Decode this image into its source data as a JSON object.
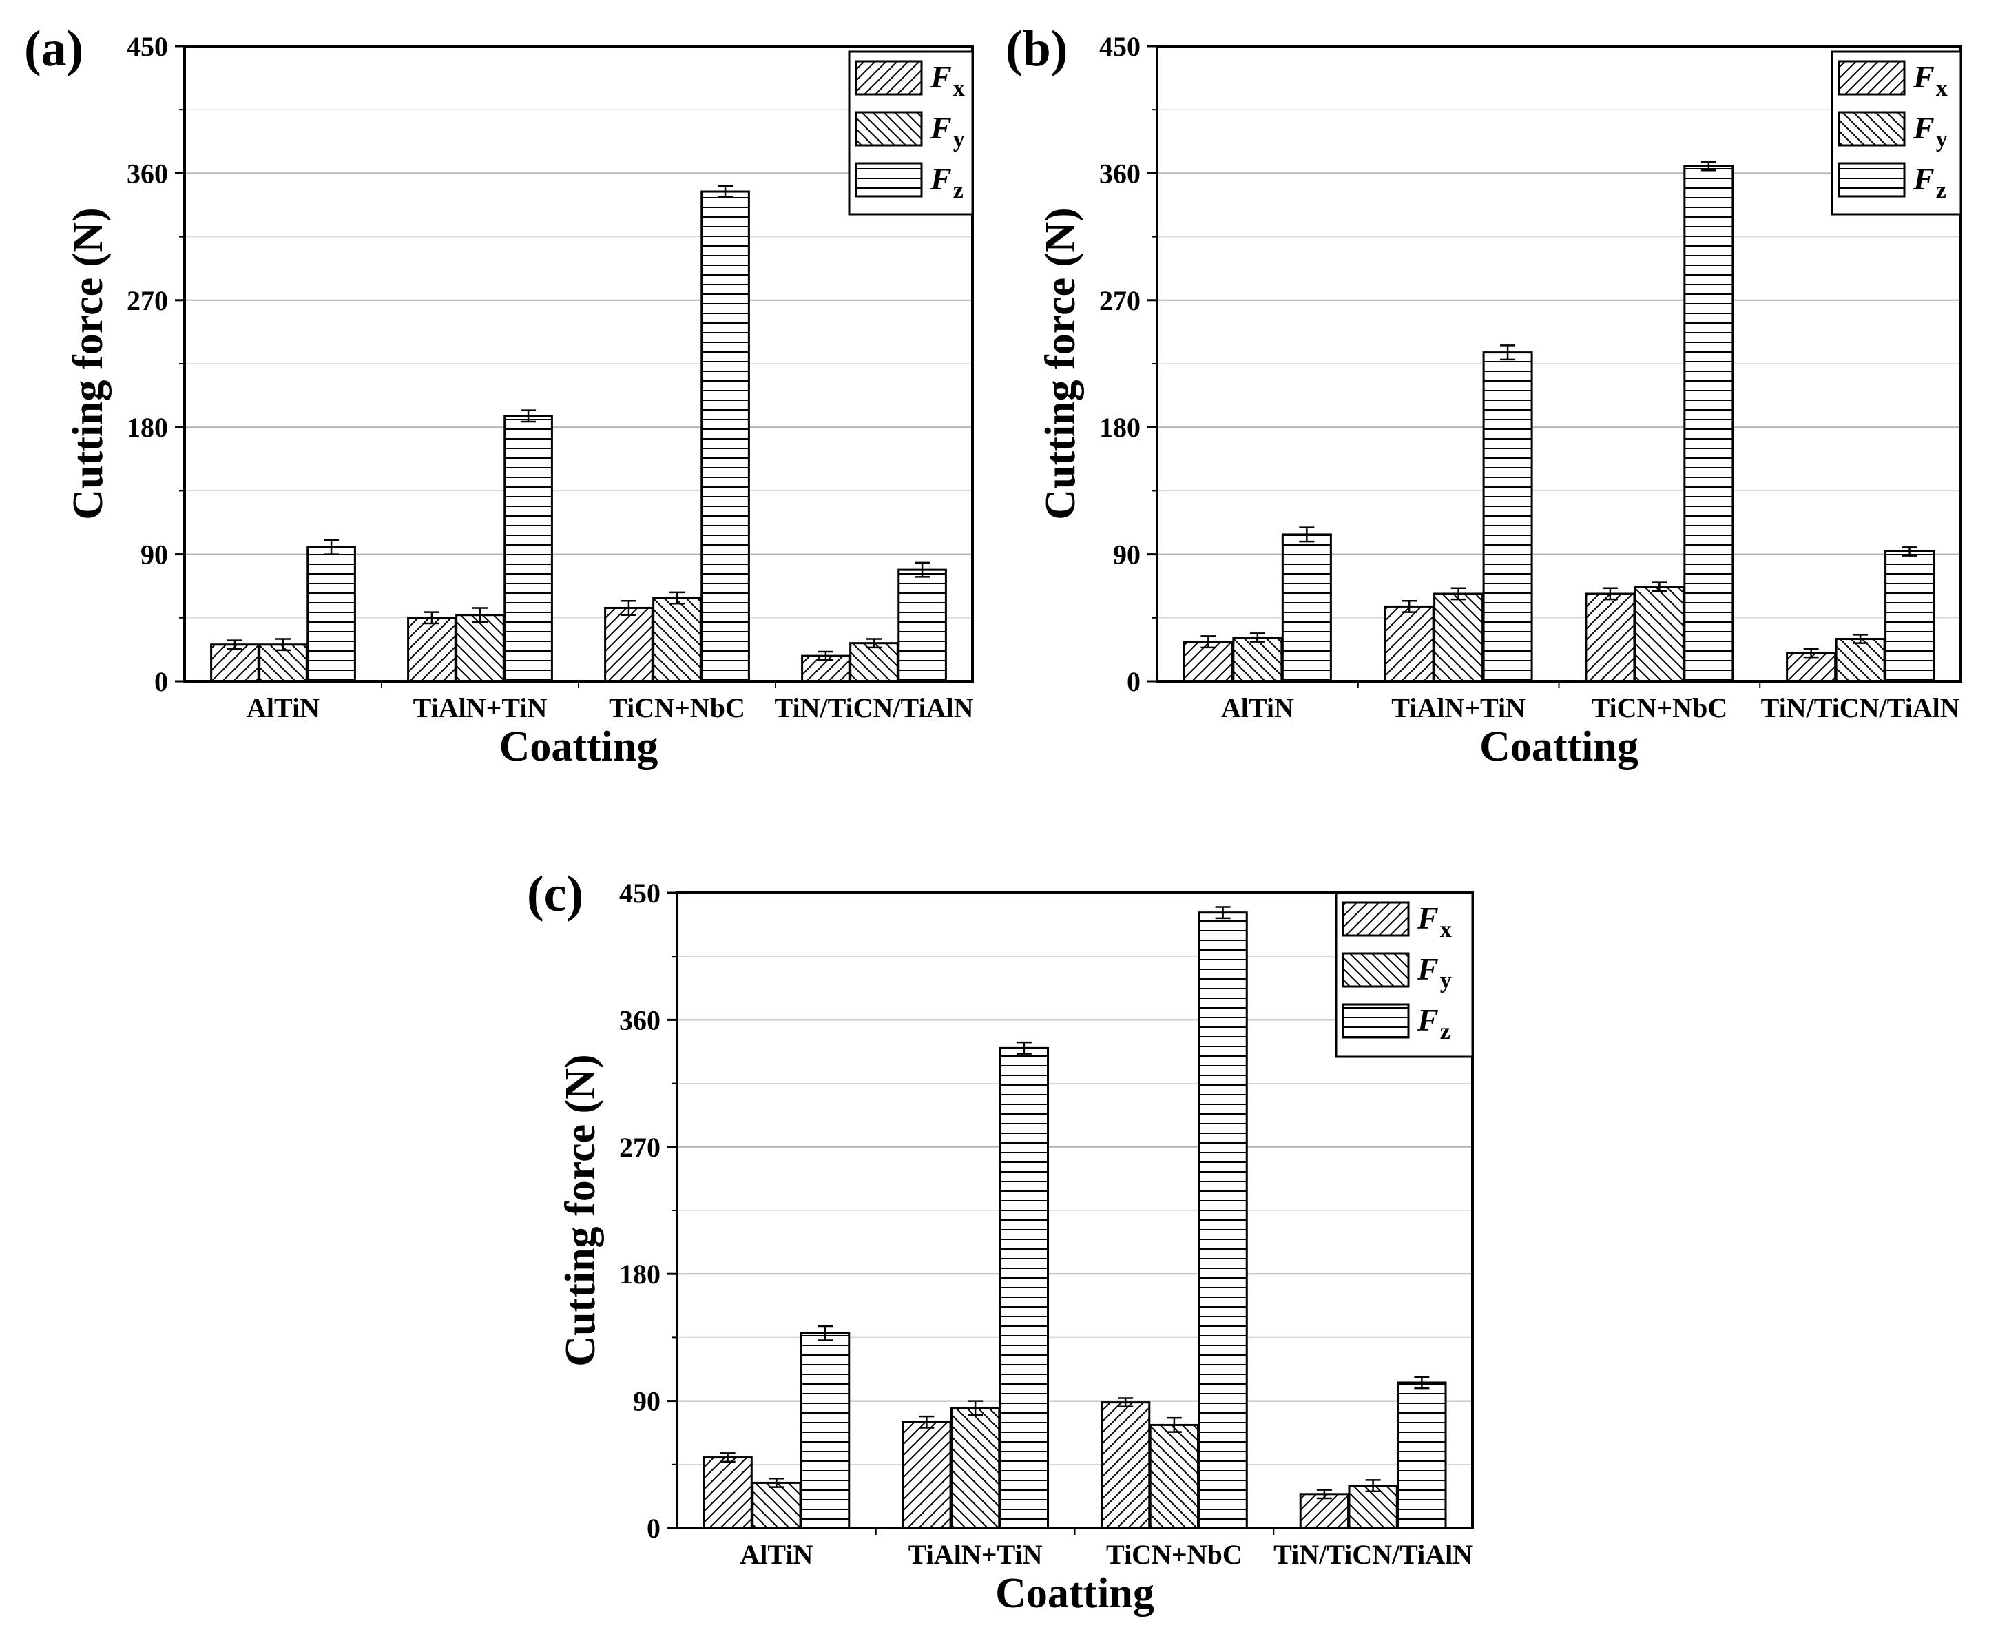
{
  "chart_data": [
    {
      "type": "bar",
      "panel_label": "(a)",
      "ylabel": "Cutting force (N)",
      "xlabel": "Coatting",
      "ylim": [
        0,
        450
      ],
      "yticks": [
        0,
        90,
        180,
        270,
        360,
        450
      ],
      "grid": true,
      "legend_position": "top-right",
      "categories": [
        "AlTiN",
        "TiAlN+TiN",
        "TiCN+NbC",
        "TiN/TiCN/TiAlN"
      ],
      "series": [
        {
          "name": "F",
          "subscript": "x",
          "pattern": "diag-up",
          "values": [
            26,
            45,
            52,
            18
          ],
          "errors": [
            3,
            4,
            5,
            3
          ]
        },
        {
          "name": "F",
          "subscript": "y",
          "pattern": "diag-down",
          "values": [
            26,
            47,
            59,
            27
          ],
          "errors": [
            4,
            5,
            4,
            3
          ]
        },
        {
          "name": "F",
          "subscript": "z",
          "pattern": "horizontal",
          "values": [
            95,
            188,
            347,
            79
          ],
          "errors": [
            5,
            4,
            4,
            5
          ]
        }
      ]
    },
    {
      "type": "bar",
      "panel_label": "(b)",
      "ylabel": "Cutting force (N)",
      "xlabel": "Coatting",
      "ylim": [
        0,
        450
      ],
      "yticks": [
        0,
        90,
        180,
        270,
        360,
        450
      ],
      "grid": true,
      "legend_position": "top-right",
      "categories": [
        "AlTiN",
        "TiAlN+TiN",
        "TiCN+NbC",
        "TiN/TiCN/TiAlN"
      ],
      "series": [
        {
          "name": "F",
          "subscript": "x",
          "pattern": "diag-up",
          "values": [
            28,
            53,
            62,
            20
          ],
          "errors": [
            4,
            4,
            4,
            3
          ]
        },
        {
          "name": "F",
          "subscript": "y",
          "pattern": "diag-down",
          "values": [
            31,
            62,
            67,
            30
          ],
          "errors": [
            3,
            4,
            3,
            3
          ]
        },
        {
          "name": "F",
          "subscript": "z",
          "pattern": "horizontal",
          "values": [
            104,
            233,
            365,
            92
          ],
          "errors": [
            5,
            5,
            3,
            3
          ]
        }
      ]
    },
    {
      "type": "bar",
      "panel_label": "(c)",
      "ylabel": "Cutting force (N)",
      "xlabel": "Coatting",
      "ylim": [
        0,
        450
      ],
      "yticks": [
        0,
        90,
        180,
        270,
        360,
        450
      ],
      "grid": true,
      "legend_position": "top-right",
      "categories": [
        "AlTiN",
        "TiAlN+TiN",
        "TiCN+NbC",
        "TiN/TiCN/TiAlN"
      ],
      "series": [
        {
          "name": "F",
          "subscript": "x",
          "pattern": "diag-up",
          "values": [
            50,
            75,
            89,
            24
          ],
          "errors": [
            3,
            4,
            3,
            3
          ]
        },
        {
          "name": "F",
          "subscript": "y",
          "pattern": "diag-down",
          "values": [
            32,
            85,
            73,
            30
          ],
          "errors": [
            3,
            5,
            5,
            4
          ]
        },
        {
          "name": "F",
          "subscript": "z",
          "pattern": "horizontal",
          "values": [
            138,
            340,
            436,
            103
          ],
          "errors": [
            5,
            4,
            4,
            4
          ]
        }
      ]
    }
  ]
}
